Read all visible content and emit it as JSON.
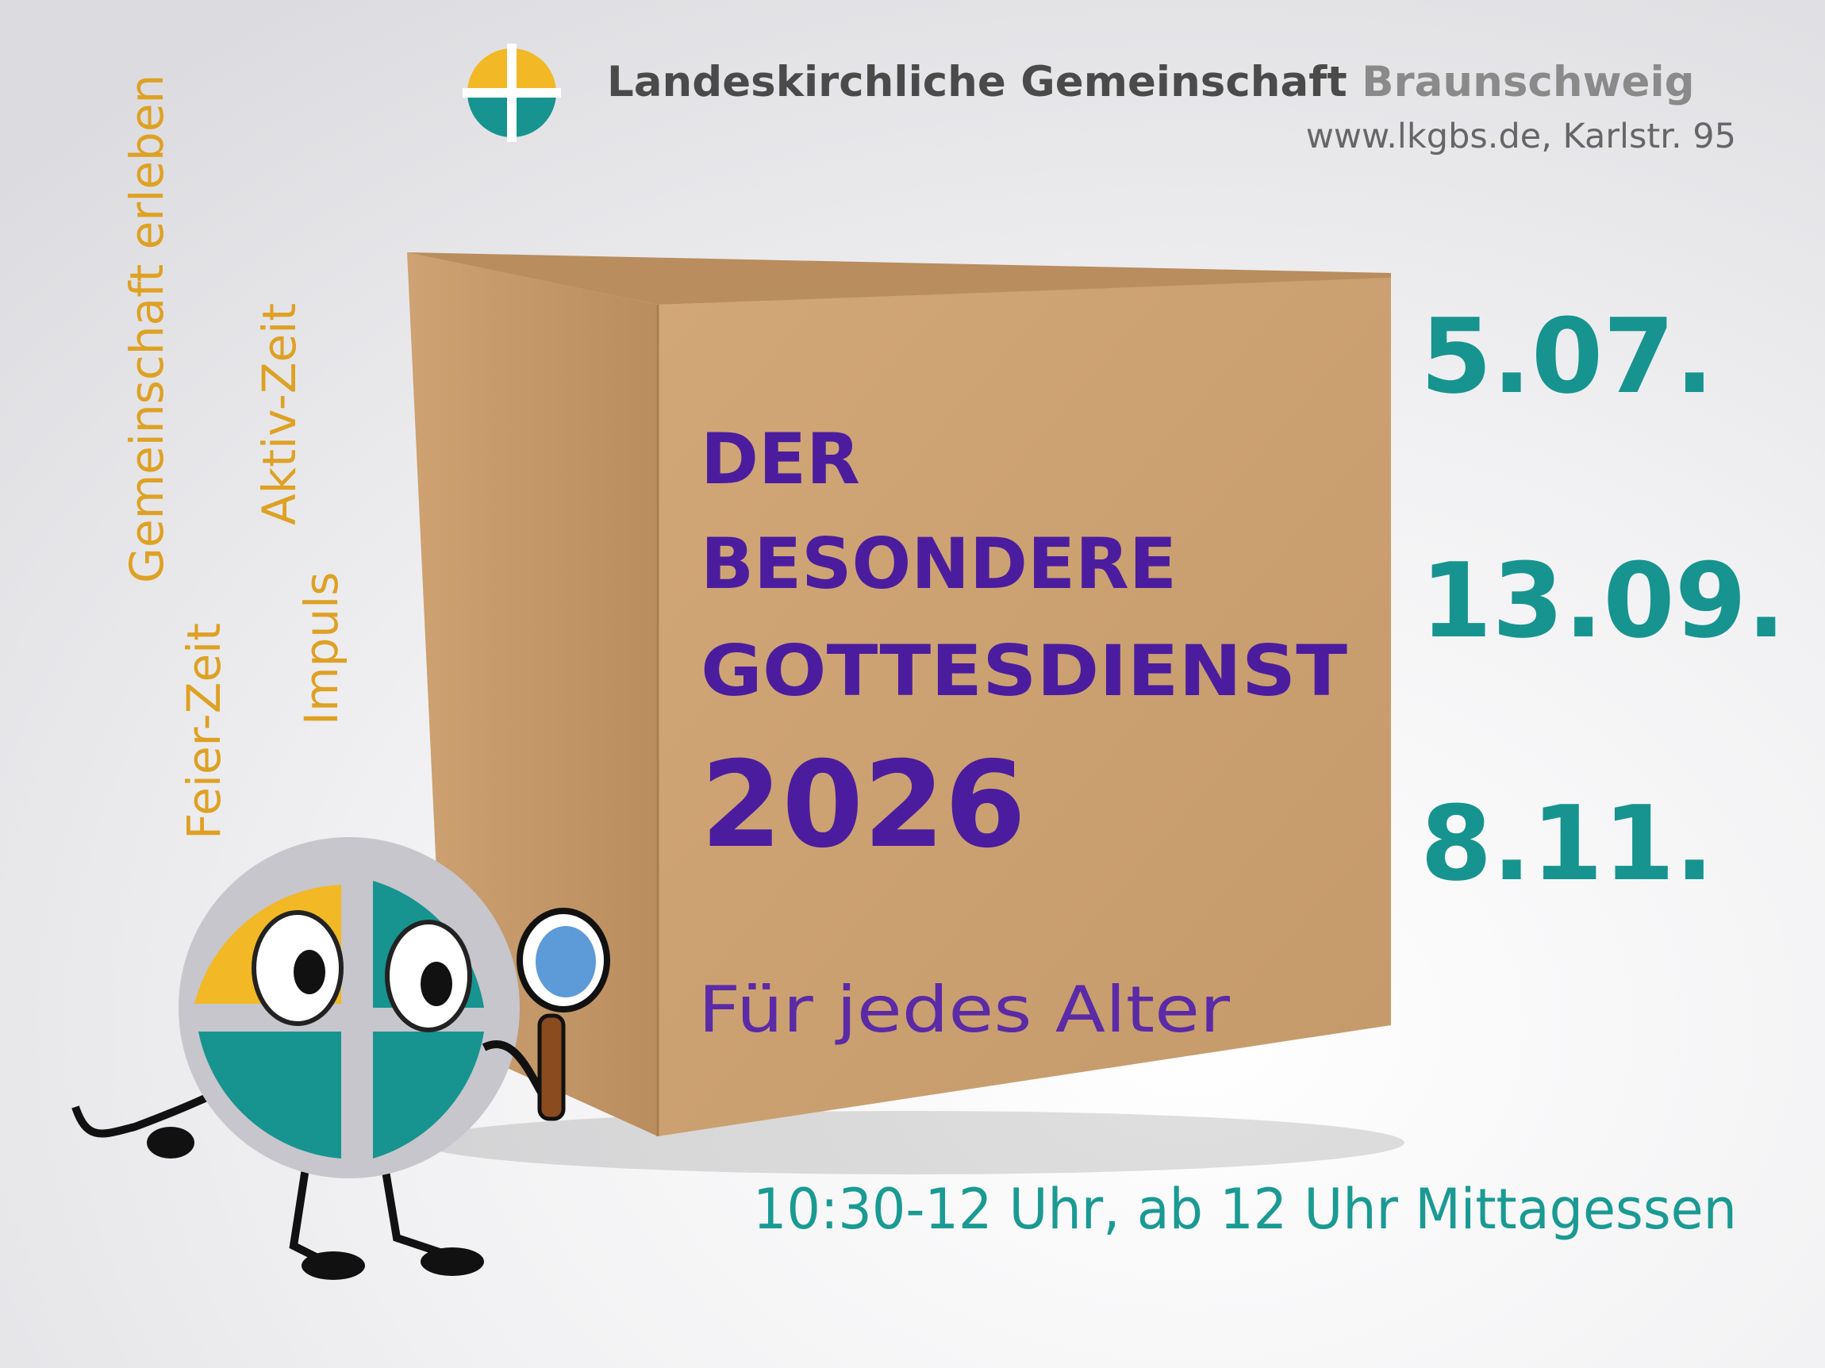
{
  "header": {
    "org_name_main": "Landeskirchliche Gemeinschaft",
    "org_name_city": "Braunschweig",
    "address": "www.lkgbs.de, Karlstr. 95"
  },
  "keywords": [
    "Gemeinschaft erleben",
    "Aktiv-Zeit",
    "Impuls",
    "Feier-Zeit"
  ],
  "title": {
    "lines": [
      "DER",
      "BESONDERE",
      "GOTTESDIENST"
    ],
    "year": "2026",
    "subtitle": "Für jedes Alter"
  },
  "dates": [
    "5.07.",
    "13.09.",
    "8.11."
  ],
  "footer": {
    "time": "10:30-12 Uhr, ab 12 Uhr Mittagessen"
  }
}
